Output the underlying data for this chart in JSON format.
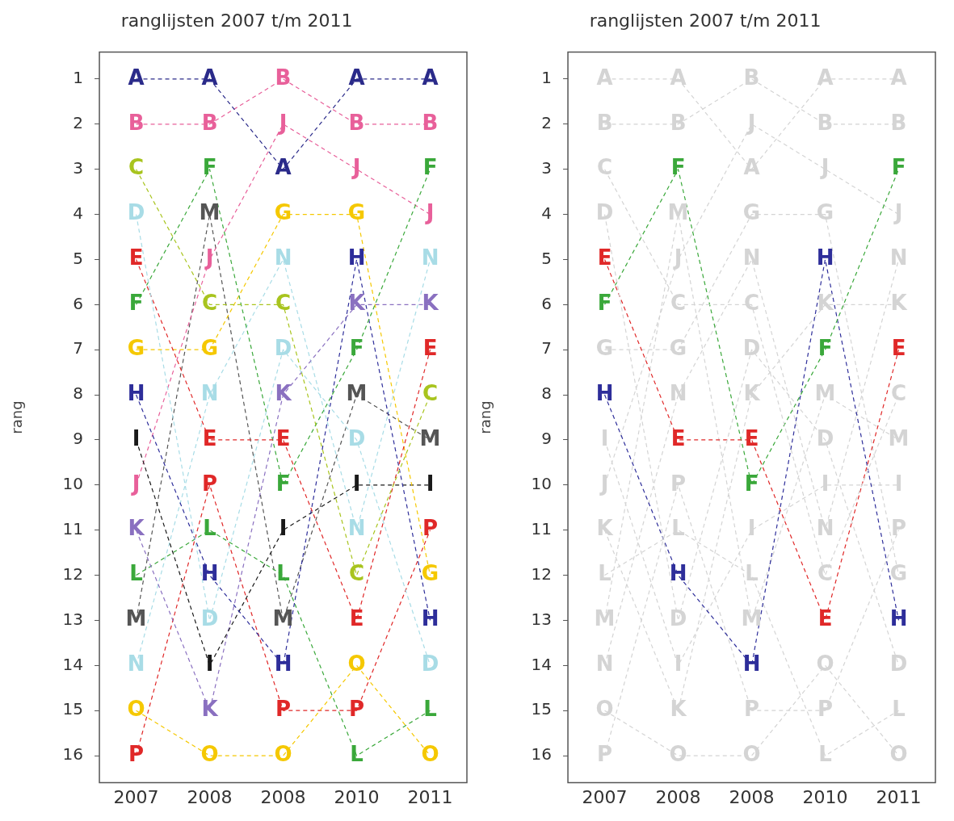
{
  "chart_data": [
    {
      "type": "line",
      "title": "ranglijsten 2007 t/m 2011",
      "ylabel": "rang",
      "categories": [
        "2007",
        "2008",
        "2008",
        "2010",
        "2011"
      ],
      "ylim": [
        16.6,
        0.4
      ],
      "yticks": [
        1,
        2,
        3,
        4,
        5,
        6,
        7,
        8,
        9,
        10,
        11,
        12,
        13,
        14,
        15,
        16
      ],
      "grid": false,
      "legend": false,
      "line_style": "dashed",
      "series": [
        {
          "name": "A",
          "color": "#2b2b8a",
          "values": [
            1,
            1,
            3,
            1,
            1
          ]
        },
        {
          "name": "B",
          "color": "#e8609a",
          "values": [
            2,
            2,
            1,
            2,
            2
          ]
        },
        {
          "name": "C",
          "color": "#a8c41e",
          "values": [
            3,
            6,
            6,
            12,
            8
          ]
        },
        {
          "name": "D",
          "color": "#a8dce6",
          "values": [
            4,
            13,
            7,
            9,
            14
          ]
        },
        {
          "name": "E",
          "color": "#e02828",
          "values": [
            5,
            9,
            9,
            13,
            7
          ]
        },
        {
          "name": "F",
          "color": "#3aa83a",
          "values": [
            6,
            3,
            10,
            7,
            3
          ]
        },
        {
          "name": "G",
          "color": "#f5c800",
          "values": [
            7,
            7,
            4,
            4,
            12
          ]
        },
        {
          "name": "H",
          "color": "#2e2e9a",
          "values": [
            8,
            12,
            14,
            5,
            13
          ]
        },
        {
          "name": "I",
          "color": "#1a1a1a",
          "values": [
            9,
            14,
            11,
            10,
            10
          ]
        },
        {
          "name": "J",
          "color": "#e8609a",
          "values": [
            10,
            5,
            2,
            3,
            4
          ]
        },
        {
          "name": "K",
          "color": "#8a70c0",
          "values": [
            11,
            15,
            8,
            6,
            6
          ]
        },
        {
          "name": "L",
          "color": "#3aa83a",
          "values": [
            12,
            11,
            12,
            16,
            15
          ]
        },
        {
          "name": "M",
          "color": "#555555",
          "values": [
            13,
            4,
            13,
            8,
            9
          ]
        },
        {
          "name": "N",
          "color": "#a8dce6",
          "values": [
            14,
            8,
            5,
            11,
            5
          ]
        },
        {
          "name": "O",
          "color": "#f5c800",
          "values": [
            15,
            16,
            16,
            14,
            16
          ]
        },
        {
          "name": "P",
          "color": "#e02828",
          "values": [
            16,
            10,
            15,
            15,
            11
          ]
        }
      ]
    },
    {
      "type": "line",
      "title": "ranglijsten 2007 t/m 2011",
      "ylabel": "rang",
      "categories": [
        "2007",
        "2008",
        "2008",
        "2010",
        "2011"
      ],
      "ylim": [
        16.6,
        0.4
      ],
      "yticks": [
        1,
        2,
        3,
        4,
        5,
        6,
        7,
        8,
        9,
        10,
        11,
        12,
        13,
        14,
        15,
        16
      ],
      "grid": false,
      "legend": false,
      "line_style": "dashed",
      "series": [
        {
          "name": "A",
          "color": "#d4d4d4",
          "values": [
            1,
            1,
            3,
            1,
            1
          ]
        },
        {
          "name": "B",
          "color": "#d4d4d4",
          "values": [
            2,
            2,
            1,
            2,
            2
          ]
        },
        {
          "name": "C",
          "color": "#d4d4d4",
          "values": [
            3,
            6,
            6,
            12,
            8
          ]
        },
        {
          "name": "D",
          "color": "#d4d4d4",
          "values": [
            4,
            13,
            7,
            9,
            14
          ]
        },
        {
          "name": "E",
          "color": "#e02828",
          "values": [
            5,
            9,
            9,
            13,
            7
          ]
        },
        {
          "name": "F",
          "color": "#3aa83a",
          "values": [
            6,
            3,
            10,
            7,
            3
          ]
        },
        {
          "name": "G",
          "color": "#d4d4d4",
          "values": [
            7,
            7,
            4,
            4,
            12
          ]
        },
        {
          "name": "H",
          "color": "#2e2e9a",
          "values": [
            8,
            12,
            14,
            5,
            13
          ]
        },
        {
          "name": "I",
          "color": "#d4d4d4",
          "values": [
            9,
            14,
            11,
            10,
            10
          ]
        },
        {
          "name": "J",
          "color": "#d4d4d4",
          "values": [
            10,
            5,
            2,
            3,
            4
          ]
        },
        {
          "name": "K",
          "color": "#d4d4d4",
          "values": [
            11,
            15,
            8,
            6,
            6
          ]
        },
        {
          "name": "L",
          "color": "#d4d4d4",
          "values": [
            12,
            11,
            12,
            16,
            15
          ]
        },
        {
          "name": "M",
          "color": "#d4d4d4",
          "values": [
            13,
            4,
            13,
            8,
            9
          ]
        },
        {
          "name": "N",
          "color": "#d4d4d4",
          "values": [
            14,
            8,
            5,
            11,
            5
          ]
        },
        {
          "name": "O",
          "color": "#d4d4d4",
          "values": [
            15,
            16,
            16,
            14,
            16
          ]
        },
        {
          "name": "P",
          "color": "#d4d4d4",
          "values": [
            16,
            10,
            15,
            15,
            11
          ]
        }
      ]
    }
  ]
}
